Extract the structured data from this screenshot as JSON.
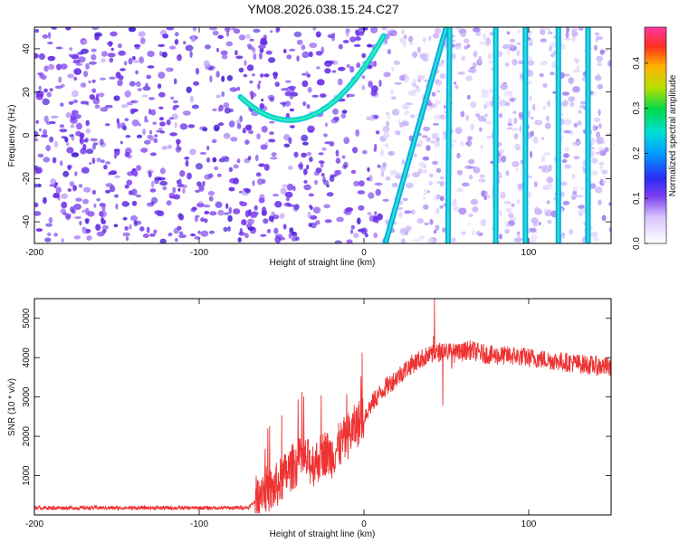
{
  "figure_title": "YM08.2026.038.15.24.C27",
  "chart_data": [
    {
      "type": "heatmap",
      "name": "spectrogram",
      "xlabel": "Height of straight line (km)",
      "ylabel": "Frequency (Hz)",
      "xlim": [
        -200,
        150
      ],
      "ylim": [
        -50,
        50
      ],
      "x_ticks": [
        -200,
        -100,
        0,
        100
      ],
      "x_tick_labels": [
        "-200",
        "-100",
        "0",
        "100"
      ],
      "y_ticks": [
        -40,
        -20,
        0,
        20,
        40
      ],
      "y_tick_labels": [
        "-40",
        "-20",
        "0",
        "20",
        "40"
      ],
      "colorbar": {
        "label": "Normalized spectral amplitude",
        "range": [
          0,
          0.48
        ],
        "ticks": [
          0.0,
          0.1,
          0.2,
          0.3,
          0.4
        ],
        "tick_labels": [
          "0.0",
          "0.1",
          "0.2",
          "0.3",
          "0.4"
        ]
      },
      "curve_parabola": {
        "vertex_x": -45,
        "vertex_y": 7,
        "x_range": [
          -75,
          12
        ],
        "note": "bright feature"
      },
      "streaks": [
        {
          "x_at_bottom": 13,
          "x_at_top": 50
        },
        {
          "x_at_bottom": 51,
          "x_at_top": 52
        },
        {
          "x_at_bottom": 80,
          "x_at_top": 80
        },
        {
          "x_at_bottom": 98,
          "x_at_top": 98
        },
        {
          "x_at_bottom": 118,
          "x_at_top": 118
        },
        {
          "x_at_bottom": 136,
          "x_at_top": 136
        }
      ]
    },
    {
      "type": "line",
      "name": "snr",
      "xlabel": "Height of straight line (km)",
      "ylabel": "SNR (10 * v/v)",
      "xlim": [
        -200,
        150
      ],
      "ylim": [
        0,
        5500
      ],
      "x_ticks": [
        -200,
        -100,
        0,
        100
      ],
      "x_tick_labels": [
        "-200",
        "-100",
        "0",
        "100"
      ],
      "y_ticks": [
        1000,
        2000,
        3000,
        4000,
        5000
      ],
      "y_tick_labels": [
        "1000",
        "2000",
        "3000",
        "4000",
        "5000"
      ],
      "color": "#ee3333",
      "series": [
        {
          "name": "SNR",
          "x": [
            -200,
            -180,
            -160,
            -140,
            -120,
            -100,
            -80,
            -70,
            -66,
            -62,
            -56,
            -50,
            -44,
            -38,
            -30,
            -24,
            -20,
            -14,
            -8,
            -4,
            0,
            6,
            12,
            20,
            28,
            36,
            44,
            48,
            52,
            56,
            64,
            72,
            80,
            90,
            100,
            110,
            120,
            130,
            140,
            150
          ],
          "y": [
            180,
            180,
            180,
            180,
            180,
            180,
            180,
            190,
            350,
            700,
            600,
            900,
            1200,
            1400,
            1300,
            1600,
            1500,
            1800,
            2100,
            2300,
            2500,
            2900,
            3200,
            3500,
            3800,
            4000,
            4100,
            4200,
            4150,
            4100,
            4200,
            4100,
            4050,
            4050,
            4000,
            3950,
            3900,
            3850,
            3800,
            3750
          ]
        }
      ]
    }
  ]
}
